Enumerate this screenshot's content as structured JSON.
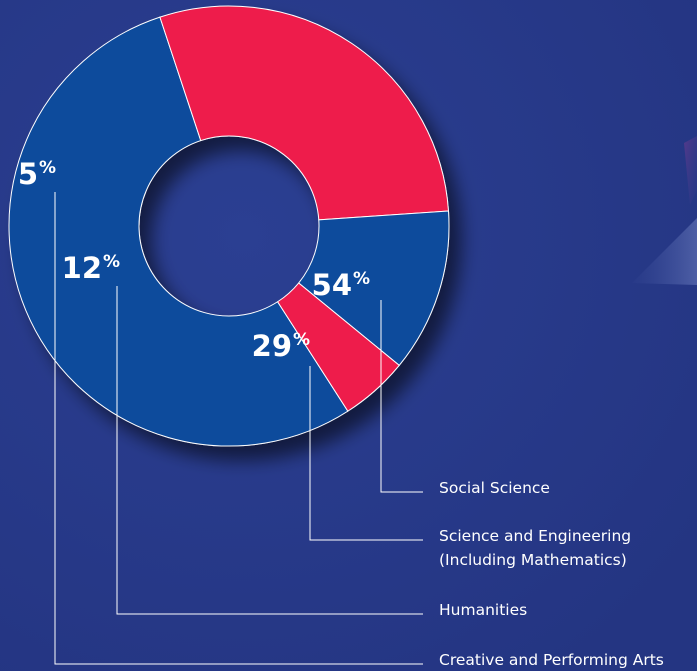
{
  "chart_data": {
    "type": "pie",
    "donut": true,
    "title": "",
    "series": [
      {
        "categories": [
          "Social Science",
          "Science and Engineering (Including Mathematics)",
          "Humanities",
          "Creative and Performing Arts"
        ],
        "values": [
          54,
          29,
          12,
          5
        ],
        "value_labels": [
          "54",
          "29",
          "12",
          "5"
        ],
        "unit": "%"
      }
    ],
    "legend": [
      {
        "line1": "Social Science",
        "line2": ""
      },
      {
        "line1": "Science and Engineering",
        "line2": "(Including Mathematics)"
      },
      {
        "line1": "Humanities",
        "line2": ""
      },
      {
        "line1": "Creative and Performing Arts",
        "line2": ""
      }
    ],
    "legend_placement": "bottom-right",
    "colors": [
      "#0b4b9c",
      "#ee1a4b",
      "#0b4b9c",
      "#ee1a4b"
    ]
  },
  "theme": {
    "background": "#283a8a",
    "ring_stroke": "#ffffff"
  }
}
